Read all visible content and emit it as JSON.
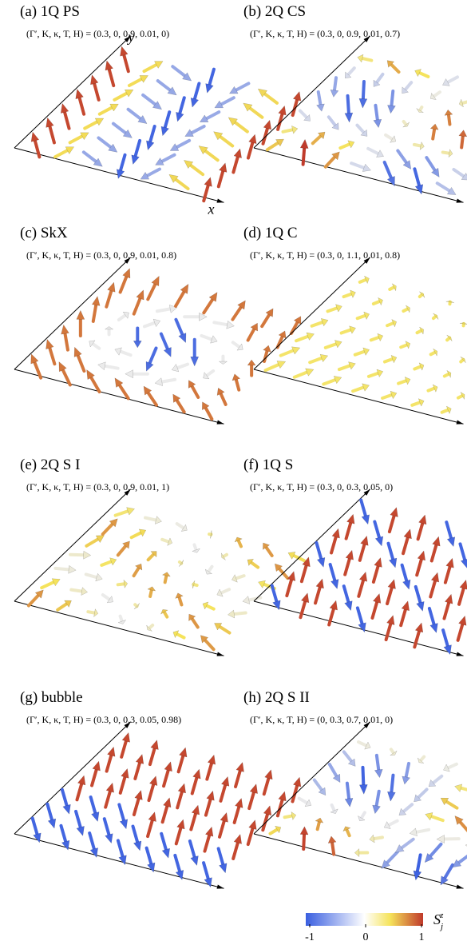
{
  "panels": [
    {
      "label": "(a) 1Q PS",
      "params": "(Γ′, K, κ, T, H) = (0.3, 0, 0.9, 0.01, 0)"
    },
    {
      "label": "(b) 2Q CS",
      "params": "(Γ′, K, κ, T, H) = (0.3, 0, 0.9, 0.01, 0.7)"
    },
    {
      "label": "(c) SkX",
      "params": "(Γ′, K, κ, T, H) = (0.3, 0, 0.9, 0.01, 0.8)"
    },
    {
      "label": "(d) 1Q C",
      "params": "(Γ′, K, κ, T, H) = (0.3, 0, 1.1, 0.01, 0.8)"
    },
    {
      "label": "(e) 2Q S I",
      "params": "(Γ′, K, κ, T, H) = (0.3, 0, 0.9, 0.01, 1)"
    },
    {
      "label": "(f) 1Q S",
      "params": "(Γ′, K, κ, T, H) = (0.3, 0, 0.3, 0.05, 0)"
    },
    {
      "label": "(g) bubble",
      "params": "(Γ′, K, κ, T, H) = (0.3, 0, 0.3, 0.05, 0.98)"
    },
    {
      "label": "(h) 2Q S II",
      "params": "(Γ′, K, κ, T, H) = (0, 0.3, 0.7, 0.01, 0)"
    }
  ],
  "axis_labels": {
    "x": "x",
    "y": "y"
  },
  "colorbar": {
    "symbol": "S",
    "sub": "j",
    "sup": "z",
    "range": [
      -1,
      1
    ],
    "ticks": [
      -1,
      0,
      1
    ]
  }
}
